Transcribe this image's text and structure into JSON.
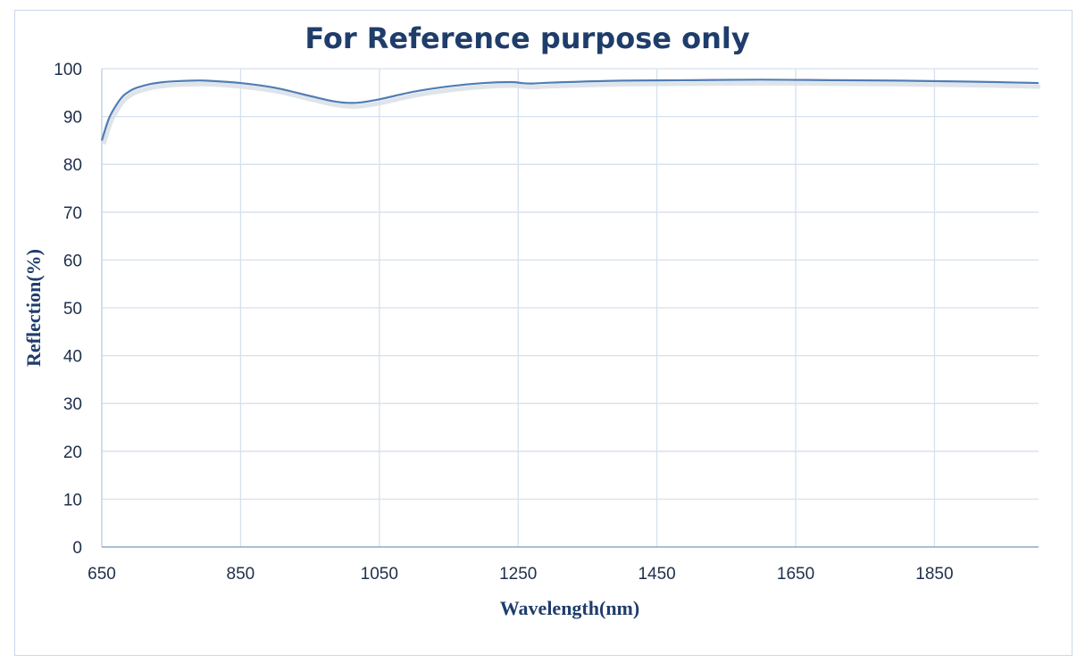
{
  "chart_data": {
    "type": "line",
    "title": "For Reference purpose only",
    "xlabel": "Wavelength(nm)",
    "ylabel": "Reflection(%)",
    "xlim": [
      650,
      2000
    ],
    "ylim": [
      0,
      100
    ],
    "xticks": [
      650,
      850,
      1050,
      1250,
      1450,
      1650,
      1850
    ],
    "yticks": [
      0,
      10,
      20,
      30,
      40,
      50,
      60,
      70,
      80,
      90,
      100
    ],
    "grid": true,
    "line_color": "#4f7db5",
    "series": [
      {
        "x": [
          650,
          660,
          670,
          680,
          690,
          700,
          720,
          740,
          760,
          780,
          800,
          850,
          900,
          950,
          980,
          1000,
          1020,
          1050,
          1100,
          1150,
          1200,
          1240,
          1255,
          1270,
          1300,
          1400,
          1500,
          1600,
          1700,
          1800,
          1900,
          2000
        ],
        "y": [
          85,
          89.5,
          92.2,
          94.2,
          95.3,
          96.0,
          96.8,
          97.2,
          97.4,
          97.5,
          97.5,
          97.0,
          96.0,
          94.3,
          93.3,
          92.9,
          92.9,
          93.6,
          95.2,
          96.3,
          97.0,
          97.2,
          97.0,
          96.9,
          97.1,
          97.5,
          97.6,
          97.7,
          97.6,
          97.5,
          97.3,
          97.0
        ]
      }
    ]
  }
}
